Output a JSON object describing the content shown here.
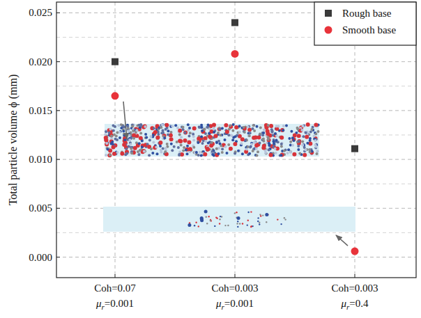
{
  "chart_data": {
    "type": "scatter",
    "y_label": "Total particle volume ϕ (mm)",
    "categories": [
      "Coh=0.07\nμr=0.001",
      "Coh=0.003\nμr=0.001",
      "Coh=0.003\nμr=0.4"
    ],
    "series": [
      {
        "name": "Rough base",
        "color": "#3a3a3a",
        "marker": "square",
        "values": [
          0.02,
          0.024,
          0.0111
        ]
      },
      {
        "name": "Smooth base",
        "color": "#e8333a",
        "marker": "circle",
        "values": [
          0.0165,
          0.0208,
          0.0006
        ]
      }
    ],
    "ylim": [
      -0.0021,
      0.0261
    ],
    "yticks": [
      {
        "value": 0,
        "label": "0.000"
      },
      0.005,
      {
        "value": 0.01,
        "label": "0.010"
      },
      0.015,
      {
        "value": 0.02,
        "label": "0.020"
      },
      0.025
    ],
    "grid": true,
    "legend": "upper right"
  }
}
